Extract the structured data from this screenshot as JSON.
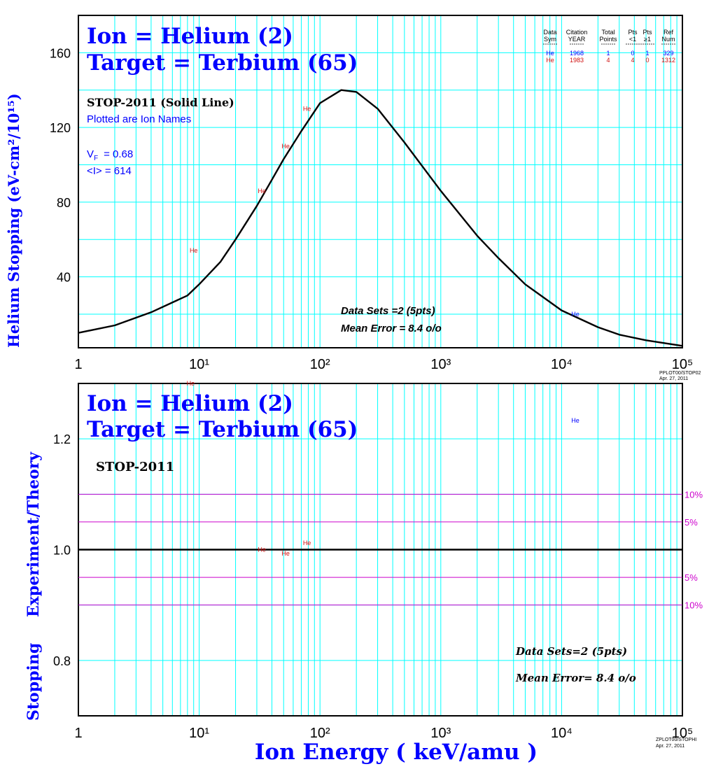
{
  "colors": {
    "blue": "#0000ff",
    "red": "#d01010",
    "grid": "#00ffff",
    "magenta": "#cc00cc",
    "black": "#000000"
  },
  "chart_data": [
    {
      "type": "line",
      "title": "Ion = Helium (2)",
      "subtitle": "Target = Terbium (65)",
      "ylabel": "Helium Stopping (eV-cm²/10¹⁵)",
      "xscale": "log",
      "xlim": [
        1,
        100000
      ],
      "ylim": [
        2,
        180
      ],
      "yticks": [
        40,
        80,
        120,
        160
      ],
      "xticks": [
        "1",
        "10¹",
        "10²",
        "10³",
        "10⁴",
        "10⁵"
      ],
      "grid": true,
      "annotations": {
        "model": "STOP-2011 (Solid Line)",
        "plotted": "Plotted are Ion Names",
        "vf": "V_F  = 0.68",
        "vf_label": "V",
        "vf_sub": "F",
        "vf_value": "= 0.68",
        "ival": "<I> = 614",
        "datasets": "Data Sets =2 (5pts)",
        "mean_error": "Mean Error =  8.4 o/o",
        "footer1": "PPLOT00/STOP02",
        "footer2": "Apr. 27, 2011"
      },
      "legend_table": {
        "headers": [
          [
            "Data",
            "Sym"
          ],
          [
            "Citation",
            "YEAR"
          ],
          [
            "Total",
            "Points"
          ],
          [
            "Pts",
            "<1"
          ],
          [
            "Pts",
            "≥1"
          ],
          [
            "Ref",
            "Num"
          ]
        ],
        "rows": [
          {
            "sym": "He",
            "year": "1968",
            "total": "1",
            "lt1": "0",
            "ge1": "1",
            "ref": "329",
            "color": "#0000ff"
          },
          {
            "sym": "He",
            "year": "1983",
            "total": "4",
            "lt1": "4",
            "ge1": "0",
            "ref": "1312",
            "color": "#d01010"
          }
        ]
      },
      "series": [
        {
          "points": [
            [
              1,
              10
            ],
            [
              2,
              14
            ],
            [
              4,
              21
            ],
            [
              8,
              30
            ],
            [
              10,
              36
            ],
            [
              15,
              48
            ],
            [
              20,
              60
            ],
            [
              30,
              78
            ],
            [
              40,
              92
            ],
            [
              50,
              103
            ],
            [
              70,
              118
            ],
            [
              100,
              133
            ],
            [
              150,
              140
            ],
            [
              200,
              139
            ],
            [
              300,
              130
            ],
            [
              500,
              112
            ],
            [
              1000,
              86
            ],
            [
              2000,
              62
            ],
            [
              3000,
              50
            ],
            [
              5000,
              36
            ],
            [
              10000,
              22
            ],
            [
              20000,
              13
            ],
            [
              30000,
              9
            ],
            [
              50000,
              6
            ],
            [
              100000,
              3
            ]
          ]
        }
      ],
      "points": [
        {
          "label": "He",
          "x": 9,
          "y": 54,
          "color": "#d01010"
        },
        {
          "label": "He",
          "x": 33,
          "y": 86,
          "color": "#d01010"
        },
        {
          "label": "He",
          "x": 52,
          "y": 110,
          "color": "#d01010"
        },
        {
          "label": "He",
          "x": 78,
          "y": 130,
          "color": "#d01010"
        },
        {
          "label": "He",
          "x": 13000,
          "y": 20,
          "color": "#0000ff"
        }
      ]
    },
    {
      "type": "line",
      "title": "Ion = Helium (2)",
      "subtitle": "Target = Terbium (65)",
      "ylabel_1": "Stopping",
      "ylabel_2": "Experiment/Theory",
      "xlabel": "Ion  Energy  ( keV/amu )",
      "xscale": "log",
      "xlim": [
        1,
        100000
      ],
      "ylim": [
        0.7,
        1.3
      ],
      "yticks": [
        "0.8",
        "1.0",
        "1.2"
      ],
      "xticks": [
        "1",
        "10¹",
        "10²",
        "10³",
        "10⁴",
        "10⁵"
      ],
      "grid": true,
      "reference_lines": [
        {
          "y": 1.1,
          "label": "10%"
        },
        {
          "y": 1.05,
          "label": "5%"
        },
        {
          "y": 0.95,
          "label": "5%"
        },
        {
          "y": 0.9,
          "label": "10%"
        }
      ],
      "annotations": {
        "model": "STOP-2011",
        "datasets": "Data Sets=2 (5pts)",
        "mean_error": "Mean Error=  8.4 o/o",
        "footer1": "ZPLOT00/STOPHI",
        "footer2": "Apr. 27, 2011"
      },
      "points": [
        {
          "label": "He",
          "x": 8.5,
          "y": 1.3,
          "color": "#d01010"
        },
        {
          "label": "He",
          "x": 33,
          "y": 1.0,
          "color": "#d01010"
        },
        {
          "label": "He",
          "x": 52,
          "y": 0.993,
          "color": "#d01010"
        },
        {
          "label": "He",
          "x": 78,
          "y": 1.012,
          "color": "#d01010"
        },
        {
          "label": "He",
          "x": 13000,
          "y": 1.233,
          "color": "#0000ff"
        }
      ]
    }
  ]
}
